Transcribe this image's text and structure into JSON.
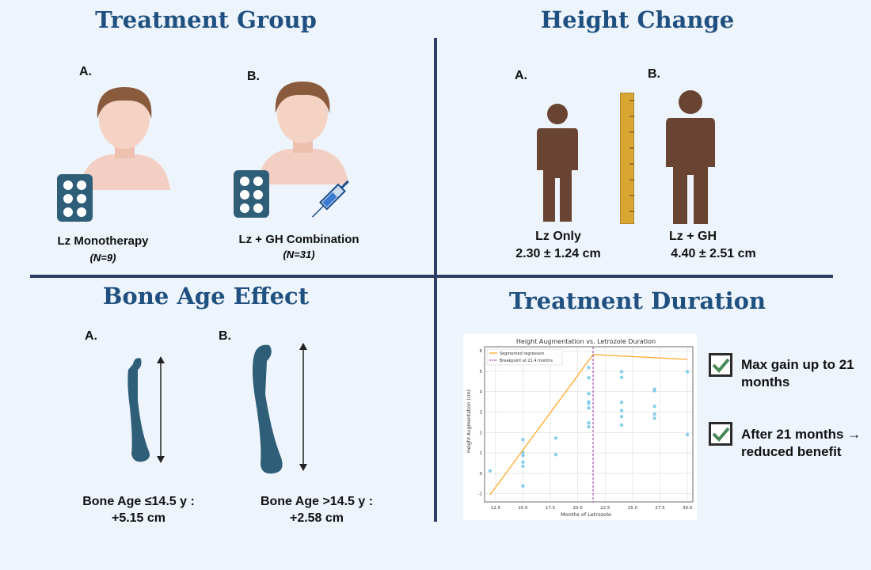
{
  "treatment": {
    "title": "Treatment Group",
    "a_label": "A.",
    "b_label": "B.",
    "a_caption": "Lz Monotherapy",
    "a_n": "(N=9)",
    "b_caption": "Lz + GH Combination",
    "b_n": "(N=31)"
  },
  "height": {
    "title": "Height Change",
    "a_label": "A.",
    "b_label": "B.",
    "a_caption": "Lz Only",
    "a_value": "2.30 ± 1.24 cm",
    "b_caption": "Lz + GH",
    "b_value": "4.40 ± 2.51 cm"
  },
  "bone": {
    "title": "Bone Age Effect",
    "a_label": "A.",
    "b_label": "B.",
    "a_caption": "Bone Age ≤14.5 y :",
    "a_value": "+5.15 cm",
    "b_caption": "Bone Age >14.5 y :",
    "b_value": "+2.58 cm"
  },
  "duration": {
    "title": "Treatment Duration",
    "note1": "Max gain up to 21 months",
    "note2": "After 21 months → reduced benefit"
  },
  "chart_data": {
    "type": "scatter",
    "title": "Height Augmentation vs. Letrozole Duration",
    "xlabel": "Months of Letrozole",
    "ylabel": "Height Augmentation (cm)",
    "xlim": [
      11.5,
      30.5
    ],
    "ylim": [
      -1.4,
      6.2
    ],
    "xticks": [
      12.5,
      15.0,
      17.5,
      20.0,
      22.5,
      25.0,
      27.5,
      30.0
    ],
    "yticks": [
      -1,
      0,
      1,
      2,
      3,
      4,
      5,
      6
    ],
    "legend": [
      "Segmented regression",
      "Breakpoint at 21.4 months"
    ],
    "legend_position": "top-left",
    "points": [
      [
        12,
        0.12
      ],
      [
        15,
        1.65
      ],
      [
        15,
        1.02
      ],
      [
        15,
        0.88
      ],
      [
        15,
        0.55
      ],
      [
        15,
        0.35
      ],
      [
        15,
        -0.62
      ],
      [
        18,
        1.73
      ],
      [
        18,
        0.92
      ],
      [
        21,
        5.18
      ],
      [
        21,
        4.68
      ],
      [
        21,
        3.9
      ],
      [
        21,
        3.5
      ],
      [
        21,
        3.42
      ],
      [
        21,
        3.2
      ],
      [
        21,
        2.47
      ],
      [
        21,
        2.28
      ],
      [
        24,
        4.98
      ],
      [
        24,
        4.7
      ],
      [
        24,
        3.48
      ],
      [
        24,
        3.07
      ],
      [
        24,
        2.78
      ],
      [
        24,
        2.37
      ],
      [
        27,
        4.12
      ],
      [
        27,
        4.05
      ],
      [
        27,
        3.28
      ],
      [
        27,
        2.9
      ],
      [
        27,
        2.7
      ],
      [
        30,
        4.98
      ],
      [
        30,
        1.9
      ]
    ],
    "regression": [
      [
        12,
        -1.05
      ],
      [
        21.4,
        5.82
      ],
      [
        30,
        5.58
      ]
    ],
    "breakpoint": 21.4,
    "colors": {
      "points": "#87ceeb",
      "line": "#ffa726",
      "breakpoint": "#9c27b0"
    }
  }
}
